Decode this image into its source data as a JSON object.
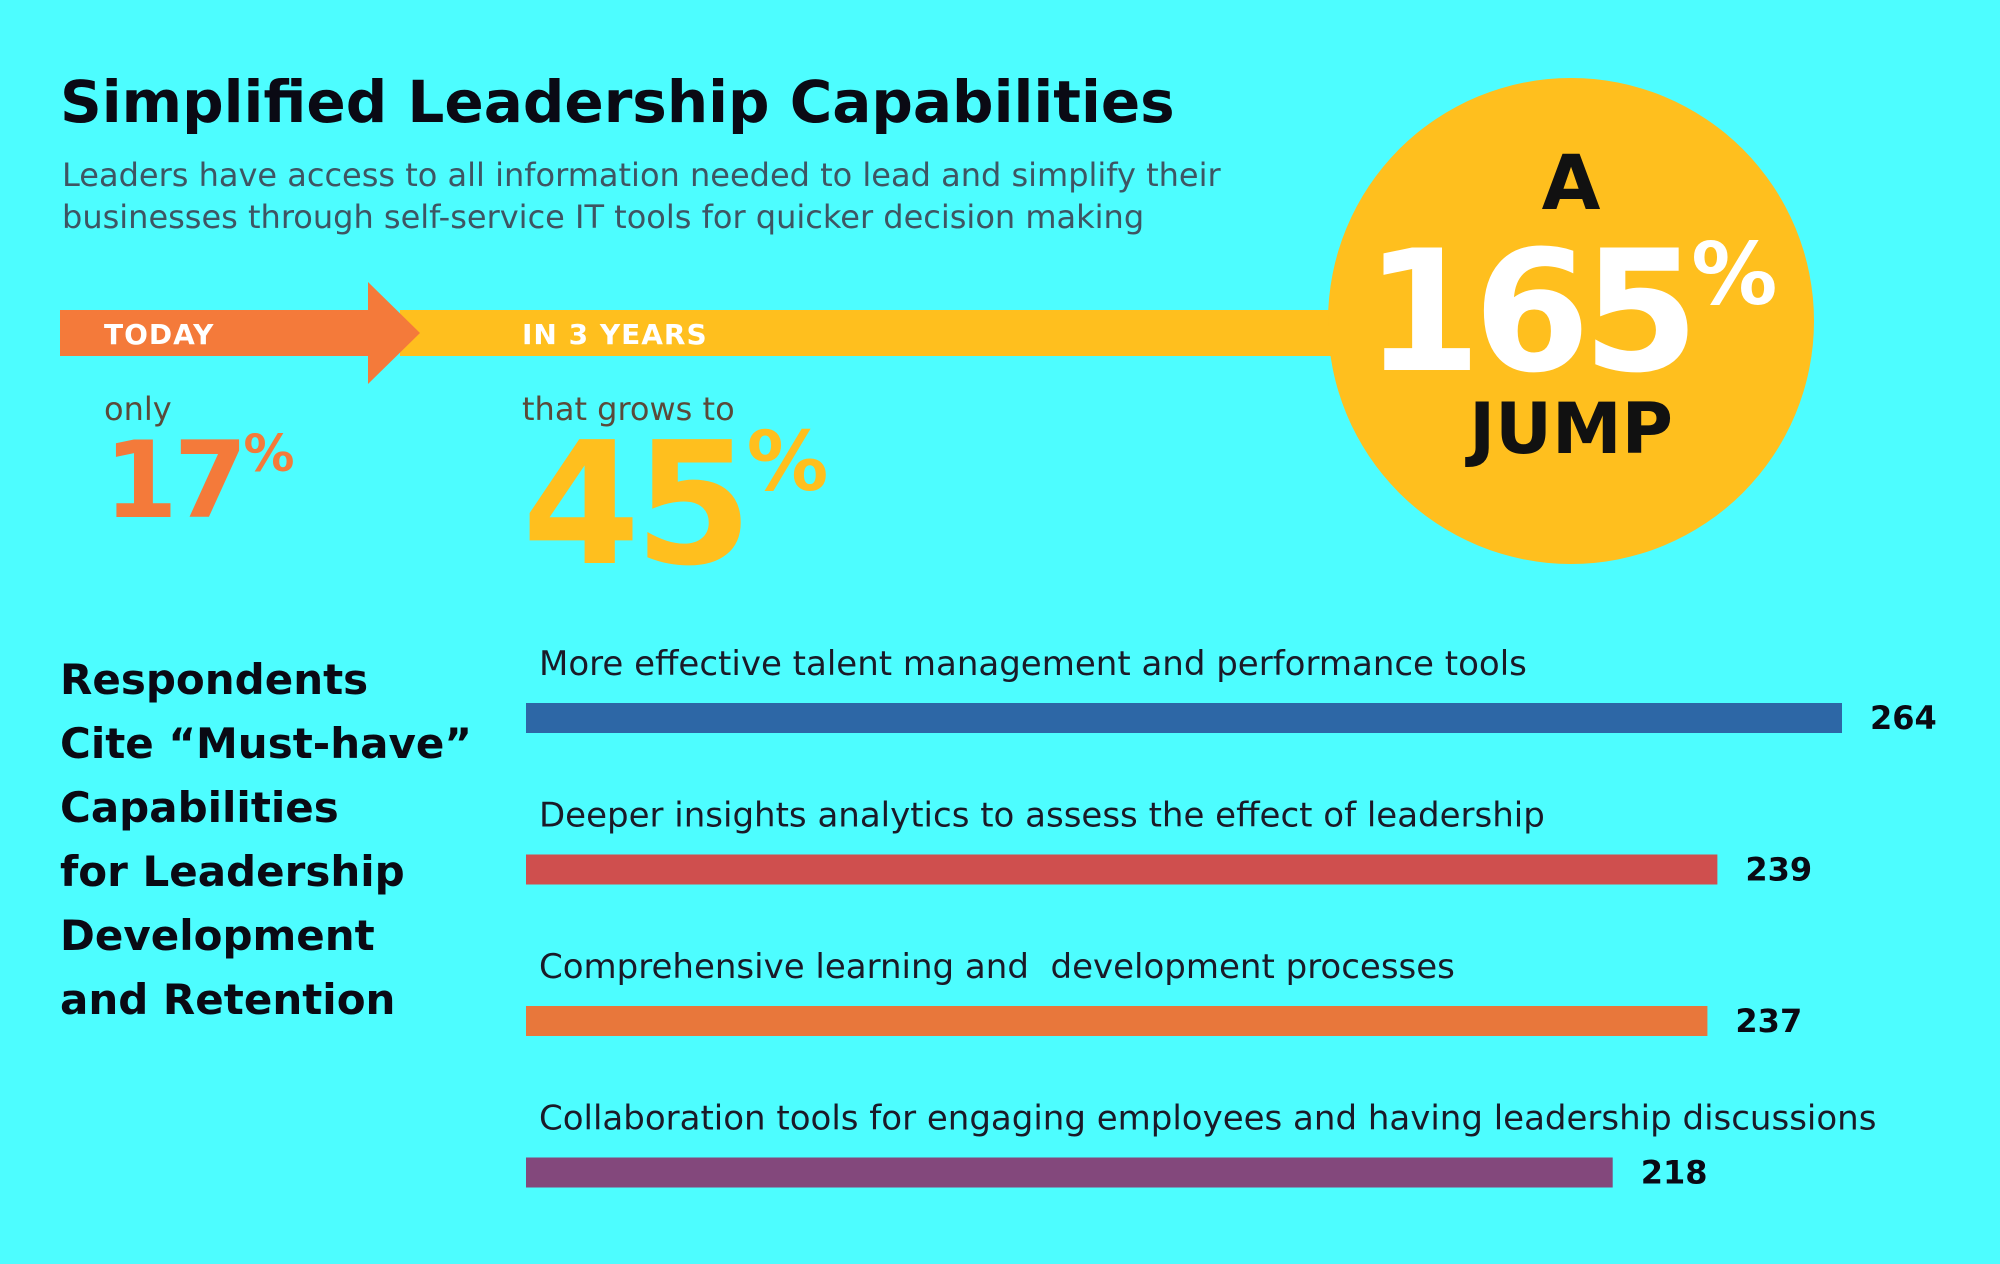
{
  "header": {
    "title": "Simplified Leadership Capabilities",
    "subtitle_line1": "Leaders have access to all information needed to lead and simplify their",
    "subtitle_line2": "businesses through self-service IT tools for quicker decision making"
  },
  "timeline": {
    "today_label": "TODAY",
    "today_prefix": "only",
    "today_value": "17",
    "future_label": "IN 3 YEARS",
    "future_prefix": "that grows to",
    "future_value": "45",
    "percent_sign": "%",
    "jump_prefix": "A",
    "jump_value": "165",
    "jump_suffix": "JUMP"
  },
  "side_title_lines": [
    "Respondents",
    "Cite “Must-have”",
    "Capabilities",
    "for Leadership",
    "Development",
    "and Retention"
  ],
  "colors": {
    "background": "#4dfdff",
    "today": "#f47a3a",
    "future": "#ffbf1e",
    "bar_blue": "#2d67a6",
    "bar_red": "#cf4f4e",
    "bar_orange": "#e8773b",
    "bar_purple": "#83487c"
  },
  "chart_data": [
    {
      "type": "bar",
      "orientation": "horizontal",
      "categories": [
        "More effective talent management and performance tools",
        "Deeper insights analytics to assess the effect of leadership",
        "Comprehensive learning and  development processes",
        "Collaboration tools for engaging employees and having leadership discussions"
      ],
      "values": [
        264,
        239,
        237,
        218
      ],
      "colors": [
        "#2d67a6",
        "#cf4f4e",
        "#e8773b",
        "#83487c"
      ],
      "title": "",
      "xlabel": "",
      "ylabel": "",
      "grid": false,
      "legend": "none"
    }
  ]
}
